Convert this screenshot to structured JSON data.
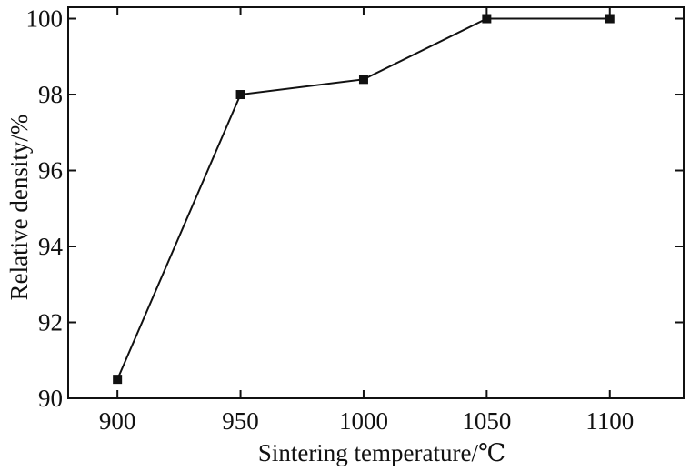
{
  "chart_data": {
    "type": "line",
    "title": "",
    "xlabel": "Sintering temperature/℃",
    "ylabel": "Relative density/%",
    "x": [
      900,
      950,
      1000,
      1050,
      1100
    ],
    "series": [
      {
        "values": [
          90.5,
          98.0,
          98.4,
          100.0,
          100.0
        ]
      }
    ],
    "xlim": [
      880,
      1130
    ],
    "ylim": [
      90,
      100.3
    ],
    "xticks": [
      900,
      950,
      1000,
      1050,
      1100
    ],
    "yticks": [
      90,
      92,
      94,
      96,
      98,
      100
    ],
    "xtick_labels": [
      "900",
      "950",
      "1000",
      "1050",
      "1100"
    ],
    "ytick_labels": [
      "90",
      "92",
      "94",
      "96",
      "98",
      "100"
    ],
    "grid": false,
    "legend": "none",
    "marker": "square",
    "colors": {
      "line": "#111111",
      "axis": "#111111"
    }
  }
}
